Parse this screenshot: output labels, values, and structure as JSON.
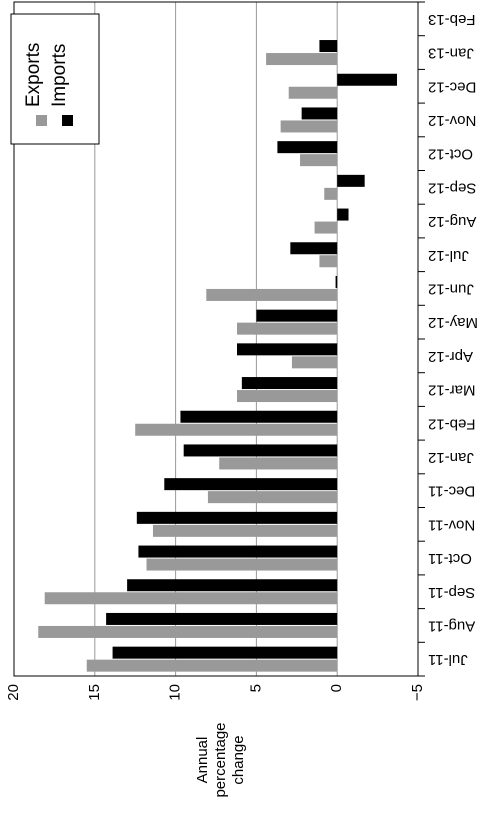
{
  "chart_data": {
    "type": "bar",
    "orientation": "horizontal",
    "rotated_page": true,
    "categories": [
      "Jul-11",
      "Aug-11",
      "Sep-11",
      "Oct-11",
      "Nov-11",
      "Dec-11",
      "Jan-12",
      "Feb-12",
      "Mar-12",
      "Apr-12",
      "May-12",
      "Jun-12",
      "Jul-12",
      "Aug-12",
      "Sep-12",
      "Oct-12",
      "Nov-12",
      "Dec-12",
      "Jan-13",
      "Feb-13"
    ],
    "series": [
      {
        "name": "Exports",
        "color": "#999999",
        "values": [
          15.5,
          18.5,
          18.1,
          11.8,
          11.4,
          8.0,
          7.3,
          12.5,
          6.2,
          2.8,
          6.2,
          8.1,
          1.1,
          1.4,
          0.8,
          2.3,
          3.5,
          3.0,
          4.4,
          null
        ]
      },
      {
        "name": "Imports",
        "color": "#000000",
        "values": [
          13.9,
          14.3,
          13.0,
          12.3,
          12.4,
          10.7,
          9.5,
          9.7,
          5.9,
          6.2,
          5.0,
          0.1,
          2.9,
          -0.7,
          -1.7,
          3.7,
          2.2,
          -3.7,
          1.1,
          null
        ]
      }
    ],
    "ylabel": "Annual percentage change",
    "ylim": [
      -5,
      20
    ],
    "ticks": [
      "20",
      "15",
      "10",
      "5",
      "0",
      "−5"
    ],
    "grid": true,
    "legend_position": "top-left"
  },
  "legend": {
    "exports_label": "Exports",
    "imports_label": "Imports"
  },
  "axis_label_lines": [
    "Annual",
    "percentage",
    "change"
  ]
}
